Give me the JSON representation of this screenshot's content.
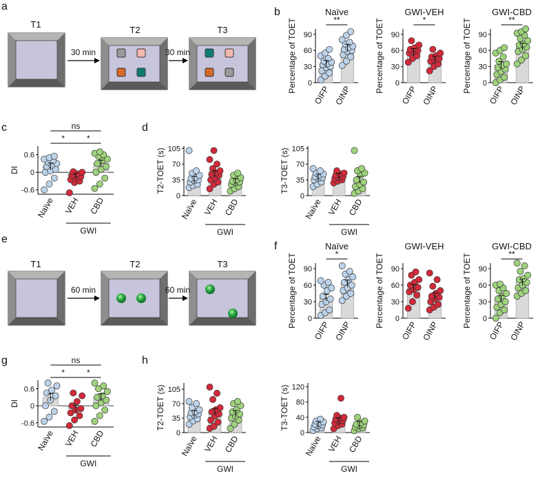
{
  "panel_letters": {
    "a": "a",
    "b": "b",
    "c": "c",
    "d": "d",
    "e": "e",
    "f": "f",
    "g": "g",
    "h": "h"
  },
  "schematic_a": {
    "trials": [
      "T1",
      "T2",
      "T3"
    ],
    "intervals": [
      "30 min",
      "30 min"
    ],
    "colors": {
      "wall": "#7a7a7a",
      "floor": "#c7c5dc",
      "gray_obj": "#9a9a9a",
      "pink_obj": "#f5b9ad",
      "orange_obj": "#d6692a",
      "teal_obj": "#0f7b72"
    }
  },
  "schematic_e": {
    "trials": [
      "T1",
      "T2",
      "T3"
    ],
    "intervals": [
      "60 min",
      "60 min"
    ],
    "colors": {
      "object": "#1f9a3a"
    }
  },
  "colors": {
    "naive": "#bcd3ea",
    "veh": "#d22a3a",
    "cbd": "#9ed27c",
    "bar": "#d9d9d9"
  },
  "chart_data": [
    {
      "id": "b-naive",
      "type": "bar",
      "title": "Naïve",
      "ylabel": "Percentage of TOET",
      "categories": [
        "OIFP",
        "OINP"
      ],
      "values": [
        35,
        65
      ],
      "ylim": [
        0,
        100
      ],
      "yticks": [
        0,
        30,
        60,
        90
      ],
      "sig": [
        {
          "label": "**",
          "pair": [
            0,
            1
          ]
        }
      ],
      "group": "naive",
      "points": [
        [
          5,
          12,
          18,
          22,
          28,
          30,
          33,
          35,
          38,
          40,
          45,
          50,
          55,
          62
        ],
        [
          32,
          40,
          48,
          52,
          58,
          60,
          62,
          65,
          68,
          72,
          75,
          80,
          88,
          95
        ]
      ]
    },
    {
      "id": "b-veh",
      "type": "bar",
      "title": "GWI-VEH",
      "ylabel": "Percentage of TOET",
      "categories": [
        "OIFP",
        "OINP"
      ],
      "values": [
        57,
        43
      ],
      "ylim": [
        0,
        100
      ],
      "yticks": [
        0,
        30,
        60,
        90
      ],
      "sig": [
        {
          "label": "*",
          "pair": [
            0,
            1
          ]
        }
      ],
      "group": "veh",
      "points": [
        [
          38,
          45,
          50,
          55,
          58,
          60,
          62,
          65,
          70,
          78
        ],
        [
          22,
          30,
          35,
          40,
          42,
          45,
          48,
          50,
          55,
          62
        ]
      ]
    },
    {
      "id": "b-cbd",
      "type": "bar",
      "title": "GWI-CBD",
      "ylabel": "Percentage of TOET",
      "categories": [
        "OIFP",
        "OINP"
      ],
      "values": [
        33,
        67
      ],
      "ylim": [
        0,
        100
      ],
      "yticks": [
        0,
        30,
        60,
        90
      ],
      "sig": [
        {
          "label": "**",
          "pair": [
            0,
            1
          ]
        }
      ],
      "group": "cbd",
      "points": [
        [
          0,
          5,
          10,
          15,
          20,
          25,
          28,
          32,
          35,
          40,
          48,
          55,
          60,
          65
        ],
        [
          35,
          42,
          50,
          58,
          62,
          66,
          70,
          72,
          78,
          82,
          88,
          92,
          95,
          100
        ]
      ]
    },
    {
      "id": "c",
      "type": "bar",
      "title": "",
      "ylabel": "DI",
      "categories": [
        "Naïve",
        "VEH",
        "CBD"
      ],
      "values": [
        0.2,
        -0.15,
        0.3
      ],
      "ylim": [
        -0.75,
        0.9
      ],
      "yticks": [
        -0.6,
        0,
        0.6
      ],
      "sig": [
        {
          "label": "*",
          "pair": [
            0,
            1
          ]
        },
        {
          "label": "*",
          "pair": [
            1,
            2
          ]
        },
        {
          "label": "ns",
          "pair": [
            0,
            2
          ]
        }
      ],
      "group_label": "GWI",
      "group_span": [
        1,
        2
      ],
      "series_groups": [
        "naive",
        "veh",
        "cbd"
      ],
      "points": [
        [
          -0.6,
          -0.4,
          -0.2,
          0.0,
          0.05,
          0.1,
          0.2,
          0.25,
          0.3,
          0.35,
          0.4,
          0.45,
          0.5,
          0.55
        ],
        [
          -0.7,
          -0.35,
          -0.3,
          -0.25,
          -0.2,
          -0.15,
          -0.1,
          -0.05,
          0.0,
          0.02
        ],
        [
          -0.55,
          -0.4,
          -0.2,
          0.0,
          0.1,
          0.2,
          0.3,
          0.4,
          0.45,
          0.55,
          0.6,
          0.65,
          0.7
        ]
      ]
    },
    {
      "id": "d-t2",
      "type": "bar",
      "title": "",
      "ylabel": "T2-TOET (s)",
      "categories": [
        "Naïve",
        "VEH",
        "CBD"
      ],
      "values": [
        35,
        48,
        30
      ],
      "ylim": [
        0,
        110
      ],
      "yticks": [
        0,
        35,
        70,
        105
      ],
      "sig": [],
      "group_label": "GWI",
      "group_span": [
        1,
        2
      ],
      "series_groups": [
        "naive",
        "veh",
        "cbd"
      ],
      "points": [
        [
          18,
          22,
          25,
          30,
          33,
          35,
          38,
          40,
          45,
          50,
          55,
          100
        ],
        [
          15,
          25,
          30,
          35,
          40,
          45,
          48,
          50,
          55,
          60,
          70,
          80,
          100
        ],
        [
          10,
          15,
          20,
          25,
          28,
          30,
          32,
          35,
          40,
          45,
          50
        ]
      ]
    },
    {
      "id": "d-t3",
      "type": "bar",
      "title": "",
      "ylabel": "T3-TOET (s)",
      "categories": [
        "Naïve",
        "VEH",
        "CBD"
      ],
      "values": [
        40,
        42,
        35
      ],
      "ylim": [
        0,
        110
      ],
      "yticks": [
        0,
        35,
        70,
        105
      ],
      "sig": [],
      "group_label": "GWI",
      "group_span": [
        1,
        2
      ],
      "series_groups": [
        "naive",
        "veh",
        "cbd"
      ],
      "points": [
        [
          20,
          25,
          30,
          35,
          38,
          40,
          42,
          45,
          48,
          50,
          55,
          60
        ],
        [
          28,
          32,
          35,
          38,
          40,
          42,
          45,
          48,
          50,
          55
        ],
        [
          5,
          10,
          15,
          20,
          25,
          30,
          35,
          45,
          50,
          55,
          60,
          100
        ]
      ]
    },
    {
      "id": "f-naive",
      "type": "bar",
      "title": "Naïve",
      "ylabel": "Percentage of TOET",
      "categories": [
        "OIFP",
        "OINP"
      ],
      "values": [
        37,
        63
      ],
      "ylim": [
        0,
        100
      ],
      "yticks": [
        0,
        30,
        60,
        90
      ],
      "sig": [
        {
          "label": "*",
          "pair": [
            0,
            1
          ]
        }
      ],
      "group": "naive",
      "points": [
        [
          5,
          10,
          15,
          25,
          30,
          35,
          40,
          50,
          55,
          60,
          65,
          68
        ],
        [
          32,
          40,
          45,
          50,
          55,
          60,
          65,
          70,
          75,
          80,
          85,
          95
        ]
      ]
    },
    {
      "id": "f-veh",
      "type": "bar",
      "title": "GWI-VEH",
      "ylabel": "Percentage of TOET",
      "categories": [
        "OIFP",
        "OINP"
      ],
      "values": [
        55,
        40
      ],
      "ylim": [
        0,
        100
      ],
      "yticks": [
        0,
        30,
        60,
        90
      ],
      "sig": [],
      "group": "veh",
      "points": [
        [
          18,
          30,
          42,
          48,
          52,
          56,
          60,
          65,
          70,
          78,
          84
        ],
        [
          15,
          20,
          25,
          30,
          35,
          38,
          40,
          45,
          50,
          58,
          70,
          82
        ]
      ]
    },
    {
      "id": "f-cbd",
      "type": "bar",
      "title": "GWI-CBD",
      "ylabel": "Percentage of TOET",
      "categories": [
        "OIFP",
        "OINP"
      ],
      "values": [
        35,
        65
      ],
      "ylim": [
        0,
        100
      ],
      "yticks": [
        0,
        30,
        60,
        90
      ],
      "sig": [
        {
          "label": "**",
          "pair": [
            0,
            1
          ]
        }
      ],
      "group": "cbd",
      "points": [
        [
          0,
          10,
          15,
          20,
          25,
          30,
          35,
          40,
          45,
          50,
          55,
          60,
          62
        ],
        [
          40,
          45,
          50,
          55,
          60,
          65,
          70,
          72,
          78,
          85,
          95,
          100
        ]
      ]
    },
    {
      "id": "g",
      "type": "bar",
      "title": "",
      "ylabel": "DI",
      "categories": [
        "Naïve",
        "VEH",
        "CBD"
      ],
      "values": [
        0.3,
        -0.1,
        0.3
      ],
      "ylim": [
        -0.75,
        0.9
      ],
      "yticks": [
        -0.6,
        0,
        0.6
      ],
      "sig": [
        {
          "label": "*",
          "pair": [
            0,
            1
          ]
        },
        {
          "label": "*",
          "pair": [
            1,
            2
          ]
        },
        {
          "label": "ns",
          "pair": [
            0,
            2
          ]
        }
      ],
      "group_label": "GWI",
      "group_span": [
        1,
        2
      ],
      "series_groups": [
        "naive",
        "veh",
        "cbd"
      ],
      "points": [
        [
          -0.55,
          -0.4,
          -0.2,
          0.0,
          0.2,
          0.35,
          0.45,
          0.55,
          0.7,
          0.8
        ],
        [
          -0.7,
          -0.5,
          -0.35,
          -0.25,
          -0.15,
          -0.1,
          0.0,
          0.15,
          0.35,
          0.45
        ],
        [
          -0.55,
          -0.35,
          -0.15,
          0.0,
          0.1,
          0.2,
          0.3,
          0.35,
          0.5,
          0.6,
          0.7,
          0.8
        ]
      ]
    },
    {
      "id": "h-t2",
      "type": "bar",
      "title": "",
      "ylabel": "T2-TOET (s)",
      "categories": [
        "Naïve",
        "VEH",
        "CBD"
      ],
      "values": [
        45,
        50,
        45
      ],
      "ylim": [
        0,
        120
      ],
      "yticks": [
        0,
        35,
        70,
        105
      ],
      "sig": [],
      "group_label": "GWI",
      "group_span": [
        1,
        2
      ],
      "series_groups": [
        "naive",
        "veh",
        "cbd"
      ],
      "points": [
        [
          20,
          28,
          33,
          38,
          42,
          45,
          48,
          50,
          55,
          60,
          70,
          75
        ],
        [
          10,
          15,
          25,
          30,
          40,
          45,
          50,
          55,
          60,
          80,
          95,
          110
        ],
        [
          10,
          20,
          30,
          35,
          40,
          45,
          50,
          55,
          65,
          70,
          75
        ]
      ]
    },
    {
      "id": "h-t3",
      "type": "bar",
      "title": "",
      "ylabel": "T3-TOET (s)",
      "categories": [
        "Naïve",
        "VEH",
        "CBD"
      ],
      "values": [
        20,
        30,
        20
      ],
      "ylim": [
        0,
        130
      ],
      "yticks": [
        0,
        40,
        80,
        120
      ],
      "sig": [],
      "group_label": "GWI",
      "group_span": [
        1,
        2
      ],
      "series_groups": [
        "naive",
        "veh",
        "cbd"
      ],
      "points": [
        [
          5,
          10,
          12,
          15,
          18,
          20,
          22,
          25,
          28,
          30,
          35
        ],
        [
          10,
          18,
          22,
          25,
          30,
          32,
          35,
          38,
          40,
          45,
          90
        ],
        [
          5,
          10,
          12,
          15,
          18,
          20,
          22,
          25,
          30,
          40
        ]
      ]
    }
  ]
}
